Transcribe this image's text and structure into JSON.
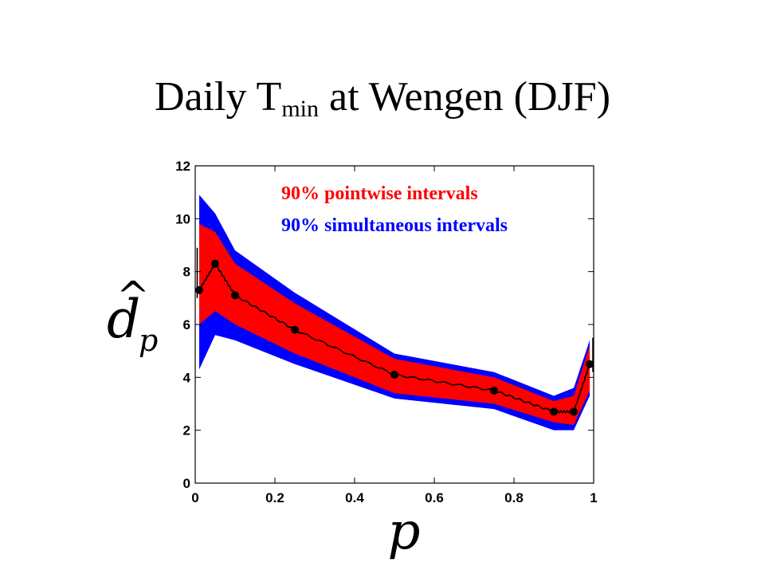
{
  "slide": {
    "title_prefix": "Daily T",
    "title_sub": "min",
    "title_suffix": " at Wengen (DJF)"
  },
  "chart_data": {
    "type": "area",
    "xlabel": "p",
    "ylabel_var": "d",
    "ylabel_sub": "p",
    "ylabel_hat": "^",
    "xlim": [
      0,
      1
    ],
    "ylim": [
      0,
      12
    ],
    "xticks": [
      0,
      0.2,
      0.4,
      0.6,
      0.8,
      1
    ],
    "xtick_labels": [
      "0",
      "0.2",
      "0.4",
      "0.6",
      "0.8",
      "1"
    ],
    "yticks": [
      0,
      2,
      4,
      6,
      8,
      10,
      12
    ],
    "ytick_labels": [
      "0",
      "2",
      "4",
      "6",
      "8",
      "10",
      "12"
    ],
    "grid": false,
    "legend_position": "top-right",
    "series": [
      {
        "name": "90% simultaneous intervals",
        "color": "#0000ff",
        "x": [
          0.01,
          0.05,
          0.1,
          0.25,
          0.5,
          0.75,
          0.9,
          0.95,
          0.99
        ],
        "lower": [
          4.3,
          5.6,
          5.4,
          4.5,
          3.2,
          2.8,
          2.0,
          2.0,
          3.3
        ],
        "upper": [
          10.9,
          10.2,
          8.8,
          7.2,
          4.9,
          4.2,
          3.3,
          3.6,
          5.4
        ]
      },
      {
        "name": "90% pointwise intervals",
        "color": "#ff0000",
        "x": [
          0.01,
          0.05,
          0.1,
          0.25,
          0.5,
          0.75,
          0.9,
          0.95,
          0.99
        ],
        "lower": [
          6.0,
          6.5,
          6.0,
          4.9,
          3.4,
          3.0,
          2.3,
          2.2,
          3.5
        ],
        "upper": [
          9.8,
          9.5,
          8.3,
          6.8,
          4.7,
          4.0,
          3.1,
          3.3,
          5.2
        ]
      }
    ],
    "estimate": {
      "x": [
        0.01,
        0.05,
        0.1,
        0.25,
        0.5,
        0.75,
        0.9,
        0.95,
        0.99
      ],
      "y": [
        7.3,
        8.3,
        7.1,
        5.8,
        4.1,
        3.5,
        2.7,
        2.7,
        4.5
      ]
    }
  }
}
